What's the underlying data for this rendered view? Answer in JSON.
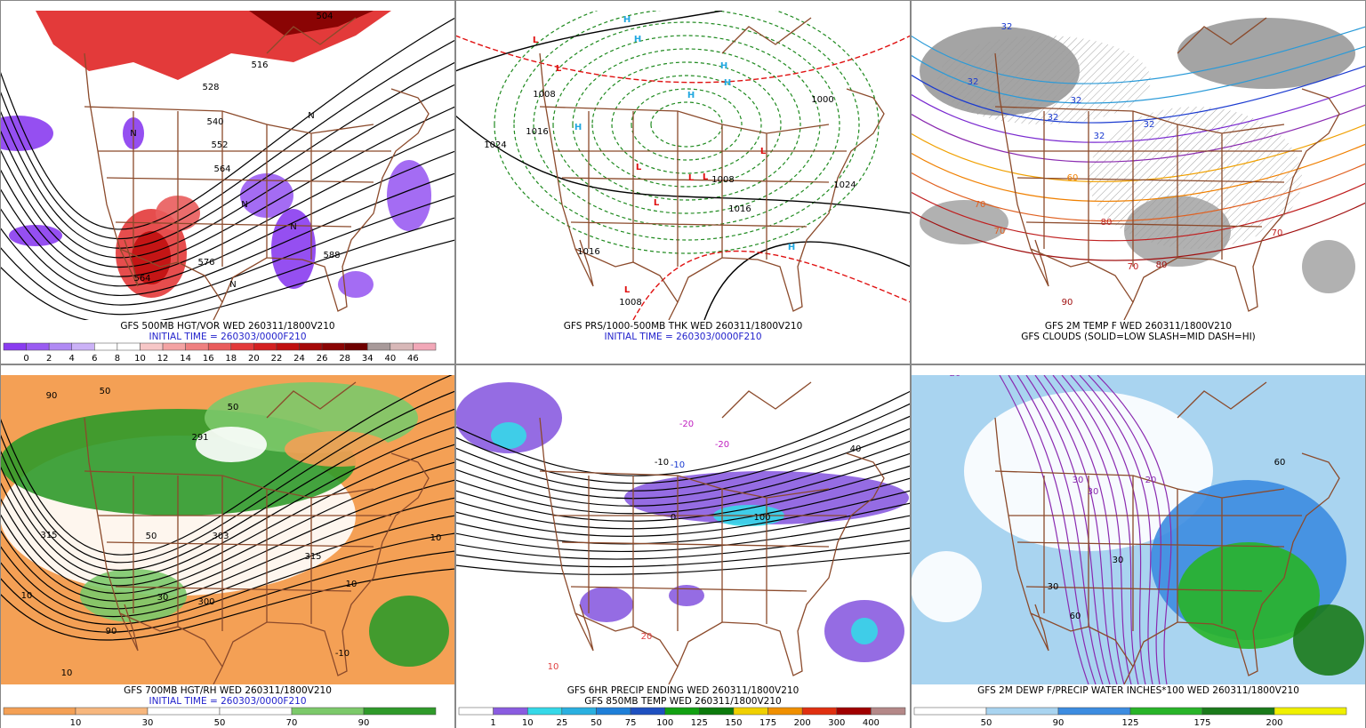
{
  "panels": [
    {
      "caption": [
        "GFS 500MB HGT/VOR WED 260311/1800V210",
        "INITIAL TIME = 260303/0000F210"
      ],
      "legend": {
        "colors": [
          "#8a3cf0",
          "#9a5cf2",
          "#b08af4",
          "#cbb2f7",
          "#ffffff",
          "#ffffff",
          "#f7c7c7",
          "#f4a3a3",
          "#ef8080",
          "#e95c5c",
          "#e33a3a",
          "#d42020",
          "#c01010",
          "#a50808",
          "#8a0404",
          "#6e0000",
          "#a89a9a",
          "#d8b8b8",
          "#f2a8b8"
        ],
        "labels": [
          0,
          2,
          4,
          6,
          8,
          10,
          12,
          14,
          16,
          18,
          20,
          22,
          24,
          26,
          28,
          34,
          40,
          46
        ]
      },
      "map_labels": [
        "504",
        "516",
        "528",
        "540",
        "552",
        "564",
        "576",
        "588",
        "564",
        "N",
        "N",
        "N",
        "N",
        "N"
      ]
    },
    {
      "caption": [
        "GFS PRS/1000-500MB THK WED 260311/1800V210",
        "INITIAL TIME = 260303/0000F210"
      ],
      "map_labels": [
        "H",
        "H",
        "H",
        "H",
        "H",
        "H",
        "H",
        "L",
        "L",
        "L",
        "L",
        "L",
        "L",
        "L",
        "L",
        "1024",
        "1024",
        "1016",
        "1016",
        "1016",
        "1008",
        "1008",
        "1008",
        "1000"
      ]
    },
    {
      "caption": [
        "GFS 2M TEMP F WED 260311/1800V210",
        "GFS CLOUDS (SOLID=LOW SLASH=MID DASH=HI)"
      ],
      "map_labels": [
        "32",
        "32",
        "32",
        "32",
        "32",
        "32",
        "60",
        "70",
        "70",
        "70",
        "70",
        "80",
        "80",
        "90"
      ]
    },
    {
      "caption": [
        "GFS 700MB HGT/RH WED 260311/1800V210",
        "INITIAL TIME = 260303/0000F210"
      ],
      "legend": {
        "colors": [
          "#f4a055",
          "#f7b77e",
          "#ffffff",
          "#ffffff",
          "#7cc96a",
          "#2f9a2a"
        ],
        "labels": [
          10,
          30,
          50,
          70,
          90
        ]
      },
      "map_labels": [
        "315",
        "303",
        "291",
        "315",
        "50",
        "50",
        "50",
        "10",
        "10",
        "10",
        "90",
        "90",
        "-10",
        "10",
        "300",
        "30"
      ]
    },
    {
      "caption": [
        "GFS 6HR PRECIP ENDING WED 260311/1800V210",
        "GFS 850MB TEMP WED 260311/1800V210"
      ],
      "legend": {
        "colors": [
          "#ffffff",
          "#8a5ce0",
          "#35d8e8",
          "#2ab0e0",
          "#1e7fd8",
          "#1e50c0",
          "#12a012",
          "#0c7a0c",
          "#f0d000",
          "#f09000",
          "#e03010",
          "#a00000",
          "#b48888"
        ],
        "labels": [
          1,
          10,
          25,
          50,
          75,
          100,
          125,
          150,
          175,
          200,
          300,
          400
        ]
      },
      "map_labels": [
        "-10",
        "-20",
        "-20",
        "0",
        "100",
        "-10",
        "20",
        "10",
        "40"
      ]
    },
    {
      "caption": [
        "GFS 2M DEWP F/PRECIP WATER INCHES*100 WED 260311/1800V210"
      ],
      "legend": {
        "colors": [
          "#ffffff",
          "#a9d4f0",
          "#3c8ce0",
          "#28b428",
          "#1a7a1a",
          "#f0f000"
        ],
        "labels": [
          50,
          90,
          125,
          175,
          200
        ]
      },
      "map_labels": [
        "30",
        "30",
        "20",
        "20",
        "60",
        "60",
        "30",
        "30"
      ]
    }
  ]
}
